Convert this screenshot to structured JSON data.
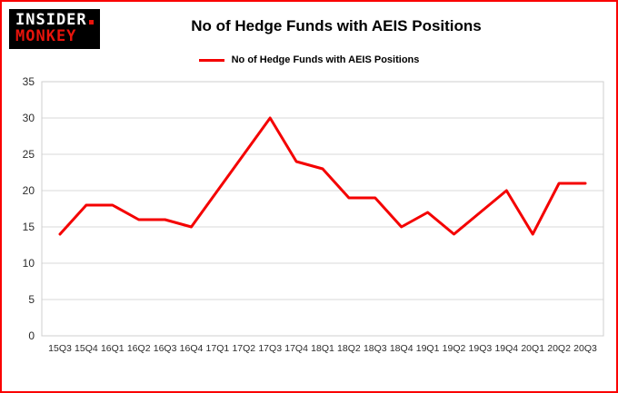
{
  "logo": {
    "line1": "INSIDER",
    "line2": "MONKEY"
  },
  "header": {
    "title": "No of Hedge Funds with AEIS Positions"
  },
  "legend": {
    "label": "No of Hedge Funds with AEIS Positions"
  },
  "colors": {
    "frame_border": "#fa0202",
    "line": "#f40000",
    "grid": "#d8d8d8",
    "tick_text": "#2b2b2b",
    "logo_bg": "#000000",
    "logo_accent": "#e8140c"
  },
  "chart_data": {
    "type": "line",
    "title": "No of Hedge Funds with AEIS Positions",
    "legend": "No of Hedge Funds with AEIS Positions",
    "categories": [
      "15Q3",
      "15Q4",
      "16Q1",
      "16Q2",
      "16Q3",
      "16Q4",
      "17Q1",
      "17Q2",
      "17Q3",
      "17Q4",
      "18Q1",
      "18Q2",
      "18Q3",
      "18Q4",
      "19Q1",
      "19Q2",
      "19Q3",
      "19Q4",
      "20Q1",
      "20Q2",
      "20Q3"
    ],
    "values": [
      14,
      18,
      18,
      16,
      16,
      15,
      20,
      25,
      30,
      24,
      23,
      19,
      19,
      15,
      17,
      14,
      17,
      20,
      14,
      21,
      21
    ],
    "xlabel": "",
    "ylabel": "",
    "ylim": [
      0,
      35
    ],
    "yticks": [
      0,
      5,
      10,
      15,
      20,
      25,
      30,
      35
    ],
    "grid": true,
    "legend_position": "top",
    "line_color": "#f40000",
    "line_width": 3
  }
}
